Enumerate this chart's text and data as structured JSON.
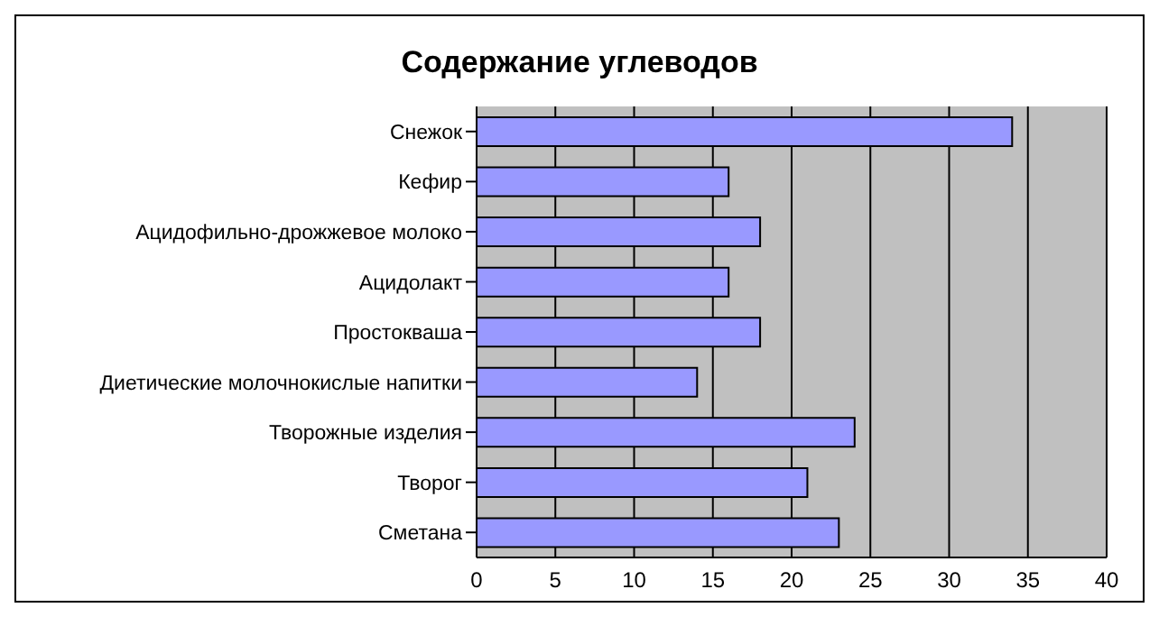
{
  "chart_data": {
    "type": "bar",
    "orientation": "horizontal",
    "title": "Содержание углеводов",
    "categories": [
      "Снежок",
      "Кефир",
      "Ацидофильно-дрожжевое молоко",
      "Ацидолакт",
      "Простокваша",
      "Диетические молочнокислые напитки",
      "Творожные изделия",
      "Творог",
      "Сметана"
    ],
    "values": [
      34,
      16,
      18,
      16,
      18,
      14,
      24,
      21,
      23
    ],
    "color": "#9999ff",
    "xlim": [
      0,
      40
    ],
    "xticks": [
      0,
      5,
      10,
      15,
      20,
      25,
      30,
      35,
      40
    ],
    "grid": "x"
  }
}
